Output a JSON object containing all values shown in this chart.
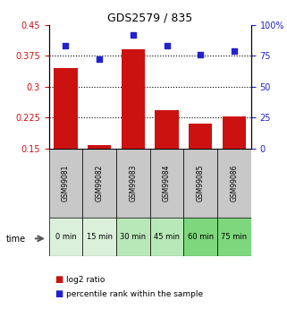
{
  "title": "GDS2579 / 835",
  "samples": [
    "GSM99081",
    "GSM99082",
    "GSM99083",
    "GSM99084",
    "GSM99085",
    "GSM99086"
  ],
  "time_labels": [
    "0 min",
    "15 min",
    "30 min",
    "45 min",
    "60 min",
    "75 min"
  ],
  "time_bg_colors": [
    "#daf0da",
    "#daf0da",
    "#b8e8b8",
    "#b8e8b8",
    "#7dd87d",
    "#7dd87d"
  ],
  "log2_ratios": [
    0.345,
    0.158,
    0.39,
    0.242,
    0.21,
    0.228
  ],
  "percentile_ranks": [
    83,
    72,
    92,
    83,
    76,
    79
  ],
  "bar_color": "#cc1111",
  "dot_color": "#2222cc",
  "ylim_left": [
    0.15,
    0.45
  ],
  "ylim_right": [
    0,
    100
  ],
  "yticks_left": [
    0.15,
    0.225,
    0.3,
    0.375,
    0.45
  ],
  "yticks_right": [
    0,
    25,
    50,
    75,
    100
  ],
  "ytick_labels_left": [
    "0.15",
    "0.225",
    "0.3",
    "0.375",
    "0.45"
  ],
  "ytick_labels_right": [
    "0",
    "25",
    "50",
    "75",
    "100%"
  ],
  "hlines": [
    0.225,
    0.3,
    0.375
  ],
  "left_axis_color": "#cc1111",
  "right_axis_color": "#2222cc",
  "sample_bg_color": "#c8c8c8",
  "legend_labels": [
    "log2 ratio",
    "percentile rank within the sample"
  ]
}
